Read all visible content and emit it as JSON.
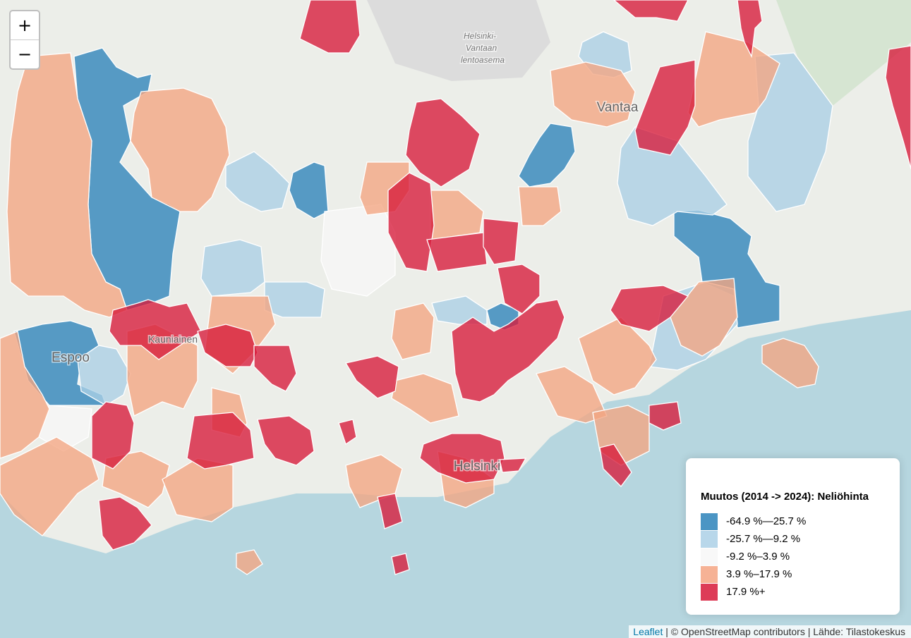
{
  "zoom": {
    "in": "+",
    "out": "−"
  },
  "map": {
    "labels": [
      "Vantaa",
      "Espoo",
      "Kauniainen",
      "Helsinki",
      "Helsinki-",
      "Vantaan",
      "lentoasema"
    ]
  },
  "legend": {
    "title": "Muutos (2014 -> 2024): Neliöhinta",
    "items": [
      {
        "label": "-64.9 %—25.7 %",
        "color": "#2b83ba"
      },
      {
        "label": "-25.7 %—9.2 %",
        "color": "#abd0e6"
      },
      {
        "label": "-9.2 %–3.9 %",
        "color": "#f7f7f7"
      },
      {
        "label": "3.9 %–17.9 %",
        "color": "#f4a582"
      },
      {
        "label": "17.9 %+",
        "color": "#d7193a"
      }
    ]
  },
  "attribution": {
    "link": "Leaflet",
    "text": "| © OpenStreetMap contributors | Lähde: Tilastokeskus"
  }
}
